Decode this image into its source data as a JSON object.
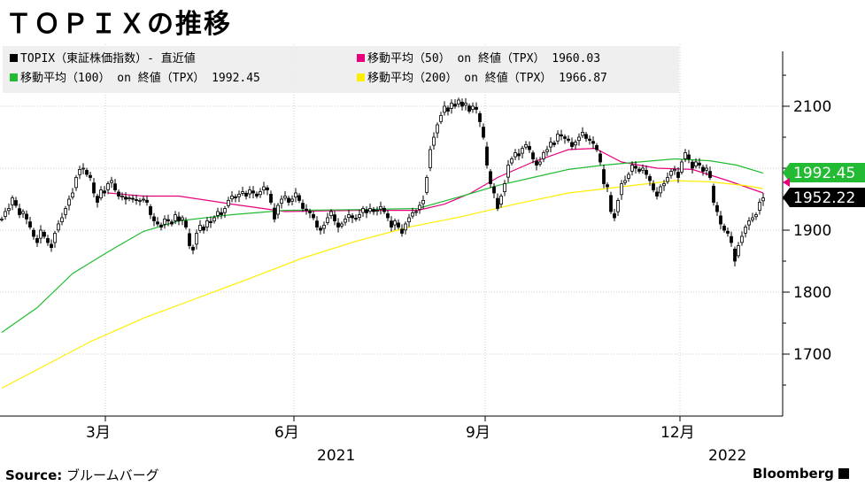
{
  "title": "ＴＯＰＩＸの推移",
  "source_label": "Source:",
  "source_text": "ブルームバーグ",
  "brand": "Bloomberg",
  "legend": [
    {
      "label": "TOPIX（東証株価指数）- 直近値",
      "color": "#000000",
      "row": 0,
      "col": 0
    },
    {
      "label": "移動平均（50） on 終値（TPX） 1960.03",
      "color": "#e6007e",
      "row": 0,
      "col": 1
    },
    {
      "label": "移動平均（100） on 終値（TPX） 1992.45",
      "color": "#22bb33",
      "row": 1,
      "col": 0
    },
    {
      "label": "移動平均（200） on 終値（TPX） 1966.87",
      "color": "#ffee00",
      "row": 1,
      "col": 1
    }
  ],
  "chart_data": {
    "type": "candlestick",
    "x_axis": {
      "ticks": [
        "3月",
        "6月",
        "9月",
        "12月"
      ],
      "year_labels": [
        "2021",
        "2022"
      ]
    },
    "y_axis": {
      "ticks": [
        1700,
        1800,
        1900,
        2100
      ],
      "ylim": [
        1600,
        2200
      ],
      "position": "right"
    },
    "last_value_labels": [
      {
        "value": "1992.45",
        "color": "#22bb33"
      },
      {
        "value": "1952.22",
        "color": "#000000"
      }
    ],
    "series": [
      {
        "name": "TOPIX（東証株価指数）",
        "kind": "candles",
        "color": "#000000",
        "points": [
          [
            0,
            1918
          ],
          [
            4,
            1930
          ],
          [
            8,
            1935
          ],
          [
            12,
            1952
          ],
          [
            16,
            1940
          ],
          [
            20,
            1925
          ],
          [
            24,
            1930
          ],
          [
            28,
            1918
          ],
          [
            32,
            1905
          ],
          [
            36,
            1890
          ],
          [
            40,
            1880
          ],
          [
            44,
            1900
          ],
          [
            48,
            1890
          ],
          [
            52,
            1880
          ],
          [
            56,
            1872
          ],
          [
            60,
            1895
          ],
          [
            64,
            1910
          ],
          [
            68,
            1920
          ],
          [
            72,
            1935
          ],
          [
            76,
            1950
          ],
          [
            80,
            1960
          ],
          [
            84,
            1985
          ],
          [
            88,
            1998
          ],
          [
            92,
            2000
          ],
          [
            96,
            1990
          ],
          [
            100,
            1985
          ],
          [
            104,
            1960
          ],
          [
            108,
            1945
          ],
          [
            112,
            1965
          ],
          [
            116,
            1960
          ],
          [
            120,
            1975
          ],
          [
            124,
            1980
          ],
          [
            128,
            1965
          ],
          [
            132,
            1955
          ],
          [
            136,
            1955
          ],
          [
            140,
            1950
          ],
          [
            144,
            1952
          ],
          [
            148,
            1950
          ],
          [
            152,
            1948
          ],
          [
            156,
            1948
          ],
          [
            160,
            1950
          ],
          [
            164,
            1945
          ],
          [
            168,
            1925
          ],
          [
            172,
            1915
          ],
          [
            176,
            1910
          ],
          [
            180,
            1905
          ],
          [
            184,
            1918
          ],
          [
            188,
            1915
          ],
          [
            192,
            1910
          ],
          [
            196,
            1925
          ],
          [
            200,
            1915
          ],
          [
            204,
            1920
          ],
          [
            208,
            1905
          ],
          [
            212,
            1875
          ],
          [
            216,
            1868
          ],
          [
            220,
            1895
          ],
          [
            224,
            1908
          ],
          [
            228,
            1900
          ],
          [
            232,
            1915
          ],
          [
            236,
            1912
          ],
          [
            240,
            1920
          ],
          [
            244,
            1930
          ],
          [
            248,
            1925
          ],
          [
            252,
            1935
          ],
          [
            256,
            1948
          ],
          [
            260,
            1955
          ],
          [
            264,
            1952
          ],
          [
            268,
            1958
          ],
          [
            272,
            1962
          ],
          [
            276,
            1955
          ],
          [
            280,
            1965
          ],
          [
            284,
            1960
          ],
          [
            288,
            1955
          ],
          [
            292,
            1962
          ],
          [
            296,
            1970
          ],
          [
            300,
            1965
          ],
          [
            304,
            1945
          ],
          [
            308,
            1918
          ],
          [
            312,
            1940
          ],
          [
            316,
            1950
          ],
          [
            320,
            1955
          ],
          [
            324,
            1945
          ],
          [
            328,
            1950
          ],
          [
            332,
            1960
          ],
          [
            336,
            1948
          ],
          [
            340,
            1935
          ],
          [
            344,
            1932
          ],
          [
            348,
            1928
          ],
          [
            352,
            1920
          ],
          [
            356,
            1905
          ],
          [
            360,
            1900
          ],
          [
            364,
            1908
          ],
          [
            368,
            1920
          ],
          [
            372,
            1930
          ],
          [
            376,
            1915
          ],
          [
            380,
            1905
          ],
          [
            384,
            1910
          ],
          [
            388,
            1918
          ],
          [
            392,
            1925
          ],
          [
            396,
            1920
          ],
          [
            400,
            1918
          ],
          [
            404,
            1925
          ],
          [
            408,
            1935
          ],
          [
            412,
            1928
          ],
          [
            416,
            1935
          ],
          [
            420,
            1930
          ],
          [
            424,
            1932
          ],
          [
            428,
            1938
          ],
          [
            432,
            1930
          ],
          [
            436,
            1920
          ],
          [
            440,
            1905
          ],
          [
            444,
            1915
          ],
          [
            448,
            1905
          ],
          [
            452,
            1895
          ],
          [
            456,
            1910
          ],
          [
            460,
            1920
          ],
          [
            464,
            1928
          ],
          [
            468,
            1930
          ],
          [
            472,
            1940
          ],
          [
            476,
            1948
          ],
          [
            480,
            1985
          ],
          [
            484,
            2030
          ],
          [
            488,
            2050
          ],
          [
            492,
            2070
          ],
          [
            496,
            2085
          ],
          [
            500,
            2100
          ],
          [
            504,
            2092
          ],
          [
            508,
            2105
          ],
          [
            512,
            2100
          ],
          [
            516,
            2110
          ],
          [
            520,
            2100
          ],
          [
            524,
            2105
          ],
          [
            528,
            2092
          ],
          [
            532,
            2100
          ],
          [
            536,
            2095
          ],
          [
            540,
            2075
          ],
          [
            544,
            2050
          ],
          [
            548,
            2005
          ],
          [
            552,
            1975
          ],
          [
            556,
            1960
          ],
          [
            560,
            1935
          ],
          [
            564,
            1955
          ],
          [
            568,
            1975
          ],
          [
            572,
            2005
          ],
          [
            576,
            2015
          ],
          [
            580,
            2025
          ],
          [
            584,
            2020
          ],
          [
            588,
            2032
          ],
          [
            592,
            2038
          ],
          [
            596,
            2030
          ],
          [
            600,
            2015
          ],
          [
            604,
            2005
          ],
          [
            608,
            2010
          ],
          [
            612,
            2025
          ],
          [
            616,
            2030
          ],
          [
            620,
            2042
          ],
          [
            624,
            2038
          ],
          [
            628,
            2055
          ],
          [
            632,
            2052
          ],
          [
            636,
            2048
          ],
          [
            640,
            2045
          ],
          [
            644,
            2035
          ],
          [
            648,
            2042
          ],
          [
            652,
            2050
          ],
          [
            656,
            2058
          ],
          [
            660,
            2048
          ],
          [
            664,
            2045
          ],
          [
            668,
            2040
          ],
          [
            672,
            2030
          ],
          [
            676,
            2010
          ],
          [
            680,
            1975
          ],
          [
            684,
            1970
          ],
          [
            688,
            1930
          ],
          [
            692,
            1920
          ],
          [
            696,
            1948
          ],
          [
            700,
            1975
          ],
          [
            704,
            1980
          ],
          [
            708,
            1990
          ],
          [
            712,
            2005
          ],
          [
            716,
            2000
          ],
          [
            720,
            1995
          ],
          [
            724,
            2000
          ],
          [
            728,
            1990
          ],
          [
            732,
            1980
          ],
          [
            736,
            1965
          ],
          [
            740,
            1955
          ],
          [
            744,
            1970
          ],
          [
            748,
            1975
          ],
          [
            752,
            1985
          ],
          [
            756,
            1995
          ],
          [
            760,
            1998
          ],
          [
            764,
            1985
          ],
          [
            768,
            2010
          ],
          [
            772,
            2025
          ],
          [
            776,
            2015
          ],
          [
            780,
            2000
          ],
          [
            784,
            2010
          ],
          [
            788,
            2005
          ],
          [
            792,
            1995
          ],
          [
            796,
            2000
          ],
          [
            800,
            1985
          ],
          [
            804,
            1945
          ],
          [
            808,
            1930
          ],
          [
            812,
            1910
          ],
          [
            816,
            1900
          ],
          [
            820,
            1895
          ],
          [
            824,
            1880
          ],
          [
            828,
            1850
          ],
          [
            832,
            1875
          ],
          [
            836,
            1890
          ],
          [
            840,
            1905
          ],
          [
            844,
            1915
          ],
          [
            848,
            1920
          ],
          [
            852,
            1925
          ],
          [
            856,
            1945
          ],
          [
            860,
            1952
          ]
        ]
      },
      {
        "name": "移動平均（50）",
        "kind": "line",
        "color": "#e6007e",
        "points": [
          [
            120,
            1960
          ],
          [
            160,
            1955
          ],
          [
            200,
            1955
          ],
          [
            260,
            1942
          ],
          [
            320,
            1930
          ],
          [
            400,
            1932
          ],
          [
            470,
            1932
          ],
          [
            500,
            1942
          ],
          [
            530,
            1960
          ],
          [
            560,
            1985
          ],
          [
            600,
            2010
          ],
          [
            640,
            2030
          ],
          [
            670,
            2032
          ],
          [
            700,
            2010
          ],
          [
            740,
            2000
          ],
          [
            780,
            1998
          ],
          [
            820,
            1980
          ],
          [
            860,
            1960
          ]
        ]
      },
      {
        "name": "移動平均（100）",
        "kind": "line",
        "color": "#22bb33",
        "points": [
          [
            0,
            1735
          ],
          [
            40,
            1775
          ],
          [
            80,
            1830
          ],
          [
            120,
            1865
          ],
          [
            160,
            1898
          ],
          [
            200,
            1915
          ],
          [
            260,
            1925
          ],
          [
            320,
            1932
          ],
          [
            400,
            1933
          ],
          [
            470,
            1935
          ],
          [
            520,
            1955
          ],
          [
            560,
            1972
          ],
          [
            600,
            1985
          ],
          [
            640,
            1998
          ],
          [
            680,
            2005
          ],
          [
            720,
            2010
          ],
          [
            760,
            2015
          ],
          [
            800,
            2012
          ],
          [
            830,
            2005
          ],
          [
            860,
            1992
          ]
        ]
      },
      {
        "name": "移動平均（200）",
        "kind": "line",
        "color": "#ffee00",
        "points": [
          [
            0,
            1645
          ],
          [
            40,
            1675
          ],
          [
            100,
            1720
          ],
          [
            160,
            1758
          ],
          [
            220,
            1790
          ],
          [
            280,
            1822
          ],
          [
            340,
            1855
          ],
          [
            400,
            1882
          ],
          [
            460,
            1905
          ],
          [
            520,
            1922
          ],
          [
            580,
            1942
          ],
          [
            640,
            1960
          ],
          [
            700,
            1970
          ],
          [
            760,
            1980
          ],
          [
            800,
            1978
          ],
          [
            840,
            1972
          ],
          [
            860,
            1967
          ]
        ]
      }
    ]
  }
}
